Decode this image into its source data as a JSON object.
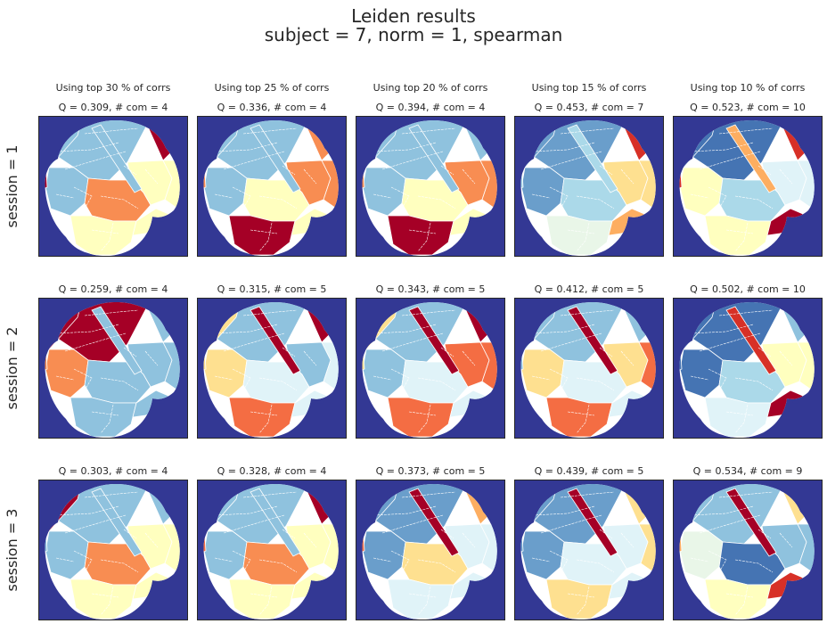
{
  "chart_data": {
    "type": "heatmap",
    "title": "Leiden results",
    "subtitle": "subject = 7,   norm = 1,   spearman",
    "columns": [
      "Using top 30 % of corrs",
      "Using top 25 % of corrs",
      "Using top 20 % of corrs",
      "Using top 15 % of corrs",
      "Using top 10 % of corrs"
    ],
    "rows": [
      "session = 1",
      "session = 2",
      "session = 3"
    ],
    "background_color": "#333894",
    "colormap": "RdYlBu",
    "panels": [
      [
        {
          "title": "Q = 0.309,  # com = 4",
          "Q": 0.309,
          "n_com": 4
        },
        {
          "title": "Q = 0.336,  # com = 4",
          "Q": 0.336,
          "n_com": 4
        },
        {
          "title": "Q = 0.394,  # com = 4",
          "Q": 0.394,
          "n_com": 4
        },
        {
          "title": "Q = 0.453,  # com = 7",
          "Q": 0.453,
          "n_com": 7
        },
        {
          "title": "Q = 0.523,  # com = 10",
          "Q": 0.523,
          "n_com": 10
        }
      ],
      [
        {
          "title": "Q = 0.259,  # com = 4",
          "Q": 0.259,
          "n_com": 4
        },
        {
          "title": "Q = 0.315,  # com = 5",
          "Q": 0.315,
          "n_com": 5
        },
        {
          "title": "Q = 0.343,  # com = 5",
          "Q": 0.343,
          "n_com": 5
        },
        {
          "title": "Q = 0.412,  # com = 5",
          "Q": 0.412,
          "n_com": 5
        },
        {
          "title": "Q = 0.502,  # com = 10",
          "Q": 0.502,
          "n_com": 10
        }
      ],
      [
        {
          "title": "Q = 0.303,  # com = 4",
          "Q": 0.303,
          "n_com": 4
        },
        {
          "title": "Q = 0.328,  # com = 4",
          "Q": 0.328,
          "n_com": 4
        },
        {
          "title": "Q = 0.373,  # com = 5",
          "Q": 0.373,
          "n_com": 5
        },
        {
          "title": "Q = 0.439,  # com = 5",
          "Q": 0.439,
          "n_com": 5
        },
        {
          "title": "Q = 0.534,  # com = 9",
          "Q": 0.534,
          "n_com": 9
        }
      ]
    ],
    "community_colors": {
      "light_blue": "#8fc2de",
      "mid_blue": "#6a9ecb",
      "dark_blue": "#4574b3",
      "pale_blue": "#e0f3f8",
      "pale_cyan": "#abd9e9",
      "pale_yellow": "#ffffbf",
      "yellow": "#fee090",
      "orange": "#fdae61",
      "dark_orange": "#f46d43",
      "salmon": "#f88d52",
      "red": "#d73027",
      "dark_red": "#a50026",
      "pale_green": "#e9f6e8"
    }
  }
}
